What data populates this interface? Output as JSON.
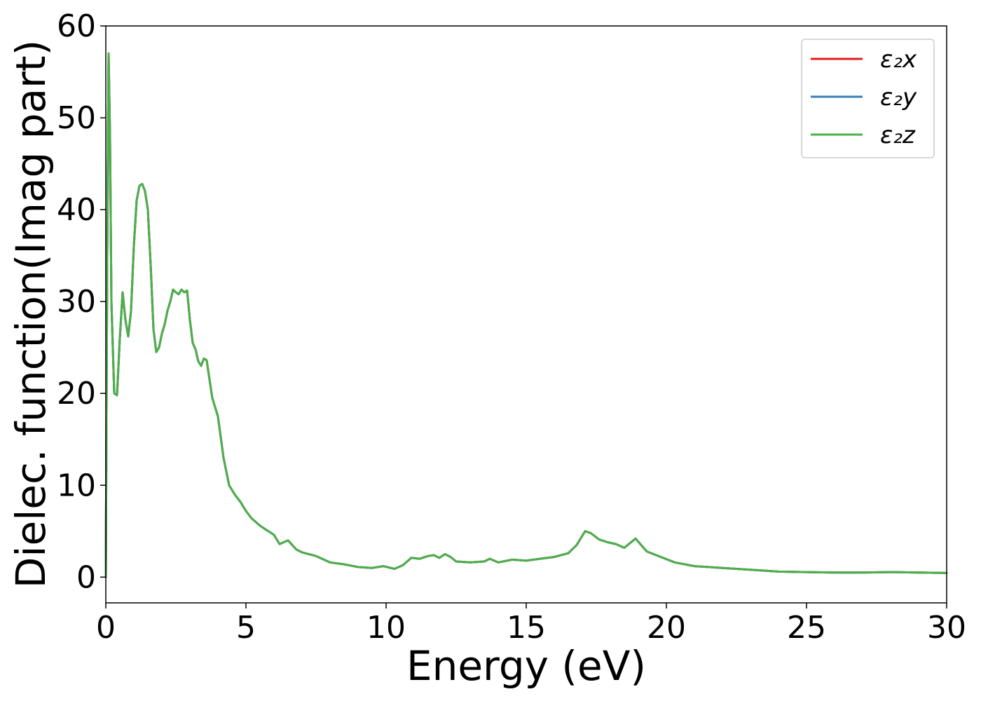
{
  "chart_data": {
    "type": "line",
    "title": "",
    "xlabel": "Energy (eV)",
    "ylabel": "Dielec. function(Imag part)",
    "xlim": [
      0,
      30
    ],
    "ylim": [
      -2.8,
      60
    ],
    "xticks": [
      "0",
      "5",
      "10",
      "15",
      "20",
      "25",
      "30"
    ],
    "yticks": [
      "0",
      "10",
      "20",
      "30",
      "40",
      "50",
      "60"
    ],
    "grid": false,
    "legend_position": "top-right",
    "x": [
      0.0,
      0.05,
      0.1,
      0.15,
      0.2,
      0.3,
      0.4,
      0.5,
      0.6,
      0.7,
      0.8,
      0.9,
      1.0,
      1.1,
      1.2,
      1.3,
      1.4,
      1.5,
      1.6,
      1.7,
      1.8,
      1.9,
      2.0,
      2.1,
      2.2,
      2.3,
      2.4,
      2.5,
      2.6,
      2.7,
      2.8,
      2.9,
      3.0,
      3.1,
      3.2,
      3.3,
      3.4,
      3.5,
      3.6,
      3.7,
      3.8,
      4.0,
      4.2,
      4.4,
      4.6,
      4.8,
      5.0,
      5.2,
      5.5,
      5.8,
      6.0,
      6.2,
      6.5,
      6.8,
      7.0,
      7.5,
      8.0,
      8.5,
      9.0,
      9.5,
      9.9,
      10.3,
      10.6,
      10.9,
      11.2,
      11.5,
      11.7,
      11.9,
      12.1,
      12.3,
      12.5,
      13.0,
      13.5,
      13.7,
      14.0,
      14.5,
      15.0,
      15.5,
      16.0,
      16.5,
      16.8,
      17.1,
      17.3,
      17.6,
      17.9,
      18.2,
      18.5,
      18.9,
      19.3,
      19.8,
      20.3,
      21.0,
      22.0,
      23.0,
      24.0,
      25.0,
      26.0,
      27.0,
      28.0,
      29.0,
      30.0
    ],
    "series": [
      {
        "name": "ε₂x",
        "color": "#e41a1c",
        "values": [
          0.0,
          35.0,
          57.0,
          48.0,
          30.0,
          20.0,
          19.8,
          26.0,
          31.0,
          28.0,
          26.2,
          29.0,
          36.0,
          41.0,
          42.6,
          42.8,
          42.0,
          40.0,
          34.0,
          27.0,
          24.5,
          25.0,
          26.5,
          27.5,
          29.0,
          30.0,
          31.3,
          31.0,
          30.8,
          31.3,
          31.0,
          31.2,
          28.0,
          25.5,
          24.8,
          23.5,
          23.0,
          23.8,
          23.6,
          21.5,
          19.5,
          17.5,
          13.0,
          10.0,
          9.0,
          8.2,
          7.2,
          6.4,
          5.6,
          5.0,
          4.6,
          3.6,
          4.0,
          3.0,
          2.7,
          2.3,
          1.6,
          1.4,
          1.1,
          1.0,
          1.2,
          0.9,
          1.3,
          2.1,
          2.0,
          2.3,
          2.4,
          2.1,
          2.5,
          2.2,
          1.7,
          1.6,
          1.7,
          2.0,
          1.6,
          1.9,
          1.8,
          2.0,
          2.2,
          2.6,
          3.5,
          5.0,
          4.8,
          4.1,
          3.8,
          3.6,
          3.2,
          4.2,
          2.8,
          2.2,
          1.6,
          1.2,
          1.0,
          0.8,
          0.6,
          0.55,
          0.5,
          0.5,
          0.55,
          0.5,
          0.45
        ]
      },
      {
        "name": "ε₂y",
        "color": "#377eb8",
        "values": [
          0.0,
          35.0,
          57.0,
          48.0,
          30.0,
          20.0,
          19.8,
          26.0,
          31.0,
          28.0,
          26.2,
          29.0,
          36.0,
          41.0,
          42.6,
          42.8,
          42.0,
          40.0,
          34.0,
          27.0,
          24.5,
          25.0,
          26.5,
          27.5,
          29.0,
          30.0,
          31.3,
          31.0,
          30.8,
          31.3,
          31.0,
          31.2,
          28.0,
          25.5,
          24.8,
          23.5,
          23.0,
          23.8,
          23.6,
          21.5,
          19.5,
          17.5,
          13.0,
          10.0,
          9.0,
          8.2,
          7.2,
          6.4,
          5.6,
          5.0,
          4.6,
          3.6,
          4.0,
          3.0,
          2.7,
          2.3,
          1.6,
          1.4,
          1.1,
          1.0,
          1.2,
          0.9,
          1.3,
          2.1,
          2.0,
          2.3,
          2.4,
          2.1,
          2.5,
          2.2,
          1.7,
          1.6,
          1.7,
          2.0,
          1.6,
          1.9,
          1.8,
          2.0,
          2.2,
          2.6,
          3.5,
          5.0,
          4.8,
          4.1,
          3.8,
          3.6,
          3.2,
          4.2,
          2.8,
          2.2,
          1.6,
          1.2,
          1.0,
          0.8,
          0.6,
          0.55,
          0.5,
          0.5,
          0.55,
          0.5,
          0.45
        ]
      },
      {
        "name": "ε₂z",
        "color": "#4daf4a",
        "values": [
          0.0,
          35.0,
          57.0,
          48.0,
          30.0,
          20.0,
          19.8,
          26.0,
          31.0,
          28.0,
          26.2,
          29.0,
          36.0,
          41.0,
          42.6,
          42.8,
          42.0,
          40.0,
          34.0,
          27.0,
          24.5,
          25.0,
          26.5,
          27.5,
          29.0,
          30.0,
          31.3,
          31.0,
          30.8,
          31.3,
          31.0,
          31.2,
          28.0,
          25.5,
          24.8,
          23.5,
          23.0,
          23.8,
          23.6,
          21.5,
          19.5,
          17.5,
          13.0,
          10.0,
          9.0,
          8.2,
          7.2,
          6.4,
          5.6,
          5.0,
          4.6,
          3.6,
          4.0,
          3.0,
          2.7,
          2.3,
          1.6,
          1.4,
          1.1,
          1.0,
          1.2,
          0.9,
          1.3,
          2.1,
          2.0,
          2.3,
          2.4,
          2.1,
          2.5,
          2.2,
          1.7,
          1.6,
          1.7,
          2.0,
          1.6,
          1.9,
          1.8,
          2.0,
          2.2,
          2.6,
          3.5,
          5.0,
          4.8,
          4.1,
          3.8,
          3.6,
          3.2,
          4.2,
          2.8,
          2.2,
          1.6,
          1.2,
          1.0,
          0.8,
          0.6,
          0.55,
          0.5,
          0.5,
          0.55,
          0.5,
          0.45
        ]
      }
    ]
  }
}
